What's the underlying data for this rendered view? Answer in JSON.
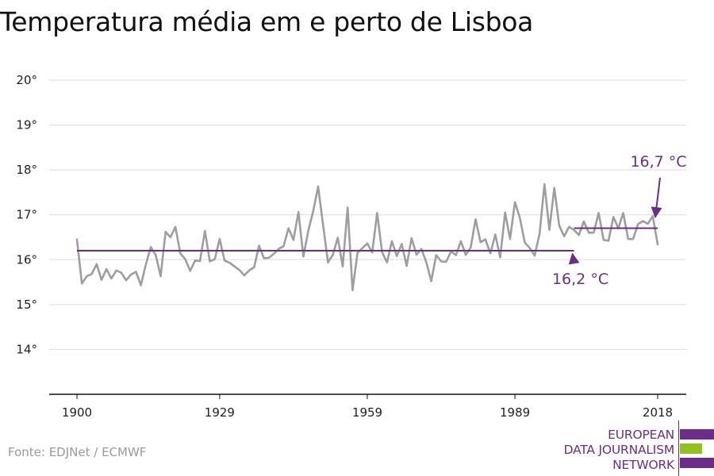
{
  "title": "Temperatura média em e perto de Lisboa",
  "source": "Fonte: EDJNet / ECMWF",
  "logo": {
    "lines": [
      "EUROPEAN",
      "DATA JOURNALISM",
      "NETWORK"
    ],
    "colors": {
      "purple": "#6b2d87",
      "green": "#95c11f"
    }
  },
  "colors": {
    "series": "#9e9e9e",
    "average": "#6b2d87",
    "grid": "#dddddd",
    "axis": "#111111"
  },
  "chart_data": {
    "type": "line",
    "title": "Temperatura média em e perto de Lisboa",
    "xlabel": "",
    "ylabel": "",
    "xlim": [
      1900,
      2018
    ],
    "ylim": [
      13,
      20
    ],
    "x_ticks": [
      1900,
      1929,
      1959,
      1989,
      2018
    ],
    "x_tick_labels": [
      "1900",
      "1929",
      "1959",
      "1989",
      "2018"
    ],
    "y_ticks": [
      14,
      15,
      16,
      17,
      18,
      19,
      20
    ],
    "y_tick_labels": [
      "14°",
      "15°",
      "16°",
      "17°",
      "18°",
      "19°",
      "20°"
    ],
    "grid": "horizontal",
    "series": [
      {
        "x": [
          1900,
          1901,
          1902,
          1903,
          1904,
          1905,
          1906,
          1907,
          1908,
          1909,
          1910,
          1911,
          1912,
          1913,
          1914,
          1915,
          1916,
          1917,
          1918,
          1919,
          1920,
          1921,
          1922,
          1923,
          1924,
          1925,
          1926,
          1927,
          1928,
          1929,
          1930,
          1931,
          1932,
          1933,
          1934,
          1935,
          1936,
          1937,
          1938,
          1939,
          1940,
          1941,
          1942,
          1943,
          1944,
          1945,
          1946,
          1947,
          1948,
          1949,
          1950,
          1951,
          1952,
          1953,
          1954,
          1955,
          1956,
          1957,
          1958,
          1959,
          1960,
          1961,
          1962,
          1963,
          1964,
          1965,
          1966,
          1967,
          1968,
          1969,
          1970,
          1971,
          1972,
          1973,
          1974,
          1975,
          1976,
          1977,
          1978,
          1979,
          1980,
          1981,
          1982,
          1983,
          1984,
          1985,
          1986,
          1987,
          1988,
          1989,
          1990,
          1991,
          1992,
          1993,
          1994,
          1995,
          1996,
          1997,
          1998,
          1999,
          2000,
          2001,
          2002,
          2003,
          2004,
          2005,
          2006,
          2007,
          2008,
          2009,
          2010,
          2011,
          2012,
          2013,
          2014,
          2015,
          2016,
          2017,
          2018
        ],
        "values": [
          16.45,
          15.47,
          15.63,
          15.68,
          15.9,
          15.55,
          15.79,
          15.58,
          15.76,
          15.71,
          15.54,
          15.67,
          15.73,
          15.43,
          15.89,
          16.28,
          16.1,
          15.63,
          16.62,
          16.5,
          16.73,
          16.14,
          16.01,
          15.75,
          15.98,
          15.97,
          16.64,
          15.96,
          16.01,
          16.46,
          15.98,
          15.93,
          15.85,
          15.77,
          15.65,
          15.76,
          15.83,
          16.31,
          16.03,
          16.04,
          16.13,
          16.24,
          16.3,
          16.7,
          16.44,
          17.06,
          16.07,
          16.64,
          17.08,
          17.63,
          16.78,
          15.94,
          16.11,
          16.49,
          15.85,
          17.16,
          15.32,
          16.15,
          16.26,
          16.36,
          16.16,
          17.04,
          16.17,
          15.94,
          16.41,
          16.08,
          16.35,
          15.86,
          16.48,
          16.11,
          16.24,
          15.94,
          15.52,
          16.1,
          15.96,
          15.95,
          16.18,
          16.1,
          16.41,
          16.11,
          16.27,
          16.9,
          16.39,
          16.45,
          16.14,
          16.56,
          16.05,
          17.05,
          16.46,
          17.28,
          16.93,
          16.38,
          16.26,
          16.09,
          16.57,
          17.68,
          16.66,
          17.6,
          16.76,
          16.52,
          16.73,
          16.66,
          16.55,
          16.85,
          16.6,
          16.6,
          17.04,
          16.44,
          16.42,
          16.95,
          16.7,
          17.04,
          16.46,
          16.46,
          16.79,
          16.86,
          16.8,
          16.97,
          16.34
        ]
      }
    ],
    "reference_lines": [
      {
        "x_start": 1900,
        "x_end": 2001,
        "value": 16.2
      },
      {
        "x_start": 2001,
        "x_end": 2018,
        "value": 16.7
      }
    ],
    "annotations": [
      {
        "text": "16,2 °C",
        "x": 2001,
        "y": 16.2,
        "placement": "below"
      },
      {
        "text": "16,7 °C",
        "x": 2018,
        "y": 16.7,
        "placement": "above"
      }
    ]
  }
}
